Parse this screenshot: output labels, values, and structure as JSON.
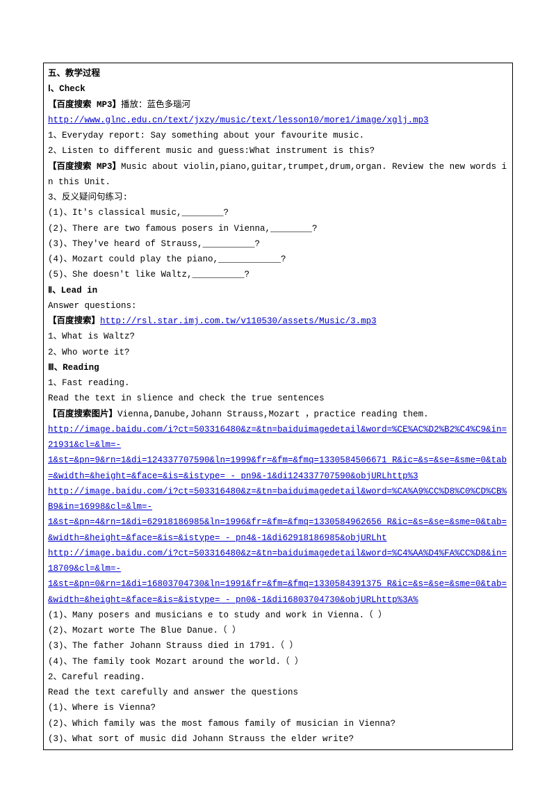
{
  "sec5_heading": "五、教学过程",
  "sec_I_heading": "Ⅰ、Check",
  "baidu_mp3_label": "【百度搜索 MP3】",
  "play_blue_danube": "播放：蓝色多瑙河",
  "link_glnc": "http://www.glnc.edu.cn/text/jxzy/music/text/lesson10/more1/image/xglj.mp3",
  "check1": "1、Everyday report: Say something about your favourite music.",
  "check2": "2、Listen to different music and guess:What instrument is this?",
  "mp3_music_about": "Music about violin,piano,guitar,trumpet,drum,organ.  Review the new words in this Unit.",
  "check3_heading": "3、反义疑问句练习:",
  "q1": "(1)、It's classical music,________?",
  "q2": "(2)、There are two famous posers in Vienna,________?",
  "q3": "(3)、They've heard of Strauss,__________?",
  "q4": "(4)、Mozart could play the piano,____________?",
  "q5": "(5)、She doesn't like Waltz,__________?",
  "sec_II_heading": "Ⅱ、Lead in",
  "answer_q": "Answer questions:",
  "baidu_search_label": "【百度搜索】",
  "link_rsl": "http://rsl.star.imj.com.tw/v110530/assets/Music/3.mp3",
  "lead1": "1、What is Waltz?",
  "lead2": "2、Who worte it?",
  "sec_III_heading": "Ⅲ、Reading",
  "read1": "1、Fast reading.",
  "read2": "Read the text in slience and check the true sentences",
  "baidu_img_label": "【百度搜索图片】",
  "vienna_practice": "Vienna,Danube,Johann Strauss,Mozart ，practice reading them.",
  "link_img1a": "http://image.baidu.com/i?ct=503316480&z=&tn=baiduimagedetail&word=%CE%AC%D2%B2%C4%C9&in=21931&cl=&lm=-",
  "link_img1b": "1&st=&pn=9&rn=1&di=124337707590&ln=1999&fr=&fm=&fmq=1330584506671_R&ic=&s=&se=&sme=0&tab=&width=&height=&face=&is=&istype= - pn9&-1&di124337707590&objURLhttp%3",
  "link_img2a": "http://image.baidu.com/i?ct=503316480&z=&tn=baiduimagedetail&word=%CA%A9%CC%D8%C0%CD%CB%B9&in=16998&cl=&lm=-",
  "link_img2b": "1&st=&pn=4&rn=1&di=62918186985&ln=1996&fr=&fm=&fmq=1330584962656_R&ic=&s=&se=&sme=0&tab=&width=&height=&face=&is=&istype= - pn4&-1&di62918186985&objURLht",
  "link_img3a": "http://image.baidu.com/i?ct=503316480&z=&tn=baiduimagedetail&word=%C4%AA%D4%FA%CC%D8&in=18709&cl=&lm=-",
  "link_img3b": "1&st=&pn=0&rn=1&di=16803704730&ln=1991&fr=&fm=&fmq=1330584391375_R&ic=&s=&se=&sme=0&tab=&width=&height=&face=&is=&istype= - pn0&-1&di16803704730&objURLhttp%3A%",
  "tf1": "(1)、Many posers and musicians e to study and work in Vienna.（  ）",
  "tf2": "(2)、Mozart worte The Blue Danue.（  ）",
  "tf3": "(3)、The father Johann Strauss died in 1791.（  ）",
  "tf4": "(4)、The family took Mozart around the world.（  ）",
  "read3": "2、Careful reading.",
  "read4": "Read the text carefully and answer the questions",
  "cq1": "(1)、Where is Vienna?",
  "cq2": "(2)、Which family was the most famous family of musician in Vienna?",
  "cq3": "(3)、What sort of music did Johann Strauss the elder write?"
}
